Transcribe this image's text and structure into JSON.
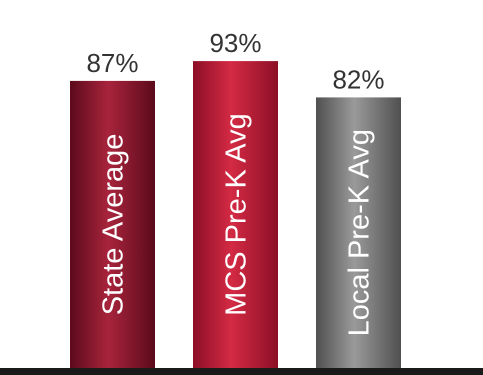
{
  "chart_data": {
    "type": "bar",
    "categories": [
      "State Average",
      "MCS Pre-K Avg",
      "Local Pre-K Avg"
    ],
    "values": [
      87,
      93,
      82
    ],
    "value_labels": [
      "87%",
      "93%",
      "82%"
    ],
    "title": "",
    "xlabel": "",
    "ylabel": "",
    "grid": false,
    "legend": "none",
    "colors": {
      "State Average": {
        "light": "#a8243c",
        "dark": "#5c0a1c"
      },
      "MCS Pre-K Avg": {
        "light": "#d42a44",
        "dark": "#8c0f26"
      },
      "Local Pre-K Avg": {
        "light": "#9a9a9a",
        "dark": "#505050"
      }
    },
    "baseline_color": "#1a1a1a"
  }
}
